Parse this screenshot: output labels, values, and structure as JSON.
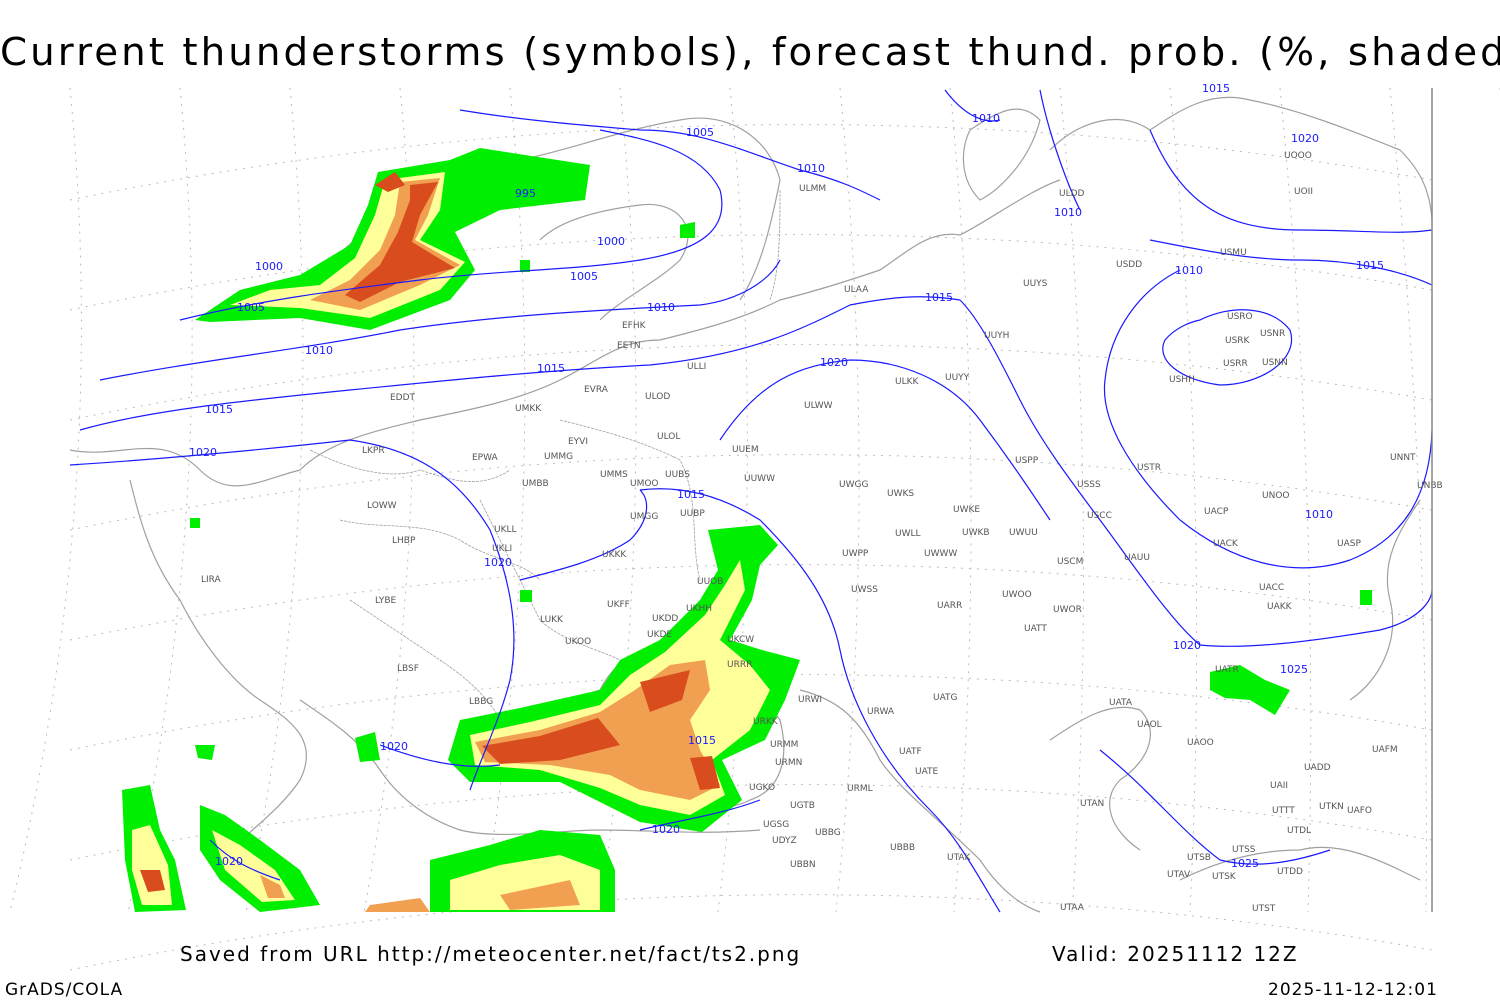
{
  "title": "Current thunderstorms (symbols), forecast thund. prob. (%, shaded)",
  "footer": {
    "source": "Saved from URL http://meteocenter.net/fact/ts2.png",
    "valid": "Valid: 20251112 12Z",
    "credit": "GrADS/COLA",
    "timestamp": "2025-11-12-12:01"
  },
  "colors": {
    "isobar": "#1a1aff",
    "coast": "#a0a0a0",
    "prob_low": "#00ee00",
    "prob_mid": "#ffff99",
    "prob_high": "#f0a050",
    "prob_max": "#d84c1e"
  },
  "isobar_labels": [
    "1005",
    "1010",
    "1010",
    "995",
    "1000",
    "1005",
    "1010",
    "1000",
    "1005",
    "1010",
    "1015",
    "1015",
    "1020",
    "1015",
    "1020",
    "1010",
    "1010",
    "1015",
    "1020",
    "1015",
    "1010",
    "1020",
    "1025",
    "1015",
    "1020",
    "1020",
    "1015",
    "1020",
    "1020",
    "1025"
  ],
  "stations": [
    "EDDT",
    "EPWA",
    "LKPR",
    "LOWW",
    "LHBP",
    "LIRA",
    "LYBE",
    "LBSF",
    "LBBG",
    "UKLL",
    "UKLI",
    "UKKK",
    "UKOO",
    "LUKK",
    "UKHH",
    "UKDD",
    "UKDE",
    "UKFF",
    "UUOB",
    "UUBP",
    "UMGG",
    "UMMS",
    "UMOO",
    "UUBS",
    "UMBB",
    "UMMG",
    "EYVI",
    "ULOL",
    "ULOD",
    "EVRA",
    "EETN",
    "EFHK",
    "ULLI",
    "UMKK",
    "ULAA",
    "ULWW",
    "ULKK",
    "UUYY",
    "UUYH",
    "UUYS",
    "UUEM",
    "UUWW",
    "UWGG",
    "UWKS",
    "UWKE",
    "UWKB",
    "UWUU",
    "UWLL",
    "UWWW",
    "UWPP",
    "UWSS",
    "UARR",
    "UWOO",
    "UWOR",
    "UATT",
    "UKCW",
    "URRR",
    "URWI",
    "URWA",
    "UATG",
    "URKK",
    "URMM",
    "URMN",
    "UATE",
    "UATF",
    "URML",
    "UGKO",
    "UGTB",
    "UGSG",
    "UBBG",
    "UDYZ",
    "UBBB",
    "UBBN",
    "UTAK",
    "UTAA",
    "UTAV",
    "UTSK",
    "UTSB",
    "UTSS",
    "UTDD",
    "UTDL",
    "UTST",
    "UTTT",
    "UTKN",
    "UAFO",
    "UAII",
    "UADD",
    "UAFM",
    "UAOO",
    "UAOL",
    "UATA",
    "UTAN",
    "UAKK",
    "UACC",
    "UACK",
    "UACP",
    "UASP",
    "UAUU",
    "USCM",
    "USCC",
    "USSS",
    "USTR",
    "USPP",
    "USHH",
    "USRR",
    "USNN",
    "USRK",
    "USNR",
    "USRO",
    "USDD",
    "USMU",
    "UNOO",
    "UNNT",
    "UNBB",
    "UOOO",
    "UOII",
    "ULDD",
    "ULMM",
    "UATR"
  ]
}
